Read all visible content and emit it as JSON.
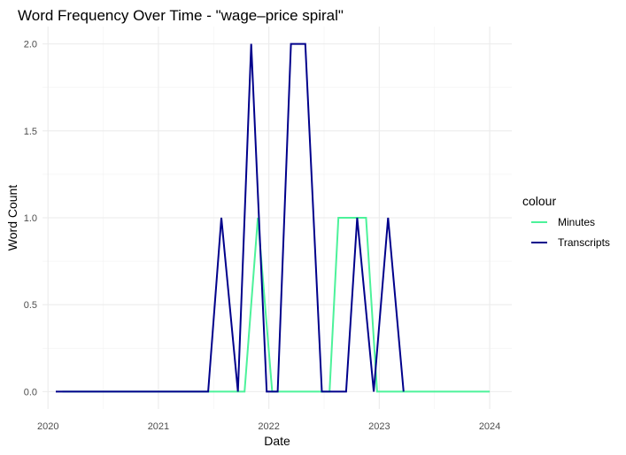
{
  "chart_data": {
    "type": "line",
    "title": "Word Frequency Over Time - \"wage–price spiral\"",
    "xlabel": "Date",
    "ylabel": "Word Count",
    "xlim": [
      2019.95,
      2024.2
    ],
    "ylim": [
      -0.1,
      2.1
    ],
    "x_ticks": [
      2020,
      2021,
      2022,
      2023,
      2024
    ],
    "x_tick_labels": [
      "2020",
      "2021",
      "2022",
      "2023",
      "2024"
    ],
    "y_ticks": [
      0,
      0.5,
      1,
      1.5,
      2
    ],
    "y_tick_labels": [
      "0.0",
      "0.5",
      "1.0",
      "1.5",
      "2.0"
    ],
    "grid": true,
    "legend": {
      "title": "colour",
      "position": "right"
    },
    "series": [
      {
        "name": "Minutes",
        "color": "#4CF29A",
        "points": [
          [
            2020.13,
            0
          ],
          [
            2021.78,
            0
          ],
          [
            2021.9,
            1
          ],
          [
            2022.03,
            0
          ],
          [
            2022.55,
            0
          ],
          [
            2022.63,
            1
          ],
          [
            2022.88,
            1
          ],
          [
            2022.98,
            0
          ],
          [
            2024.0,
            0
          ]
        ]
      },
      {
        "name": "Transcripts",
        "color": "#00008B",
        "points": [
          [
            2020.07,
            0
          ],
          [
            2020.13,
            0
          ],
          [
            2021.45,
            0
          ],
          [
            2021.57,
            1
          ],
          [
            2021.72,
            0
          ],
          [
            2021.84,
            2
          ],
          [
            2021.98,
            0
          ],
          [
            2022.08,
            0
          ],
          [
            2022.2,
            2
          ],
          [
            2022.33,
            2
          ],
          [
            2022.48,
            0
          ],
          [
            2022.7,
            0
          ],
          [
            2022.8,
            1
          ],
          [
            2022.95,
            0
          ],
          [
            2023.08,
            1
          ],
          [
            2023.22,
            0
          ]
        ]
      }
    ]
  }
}
